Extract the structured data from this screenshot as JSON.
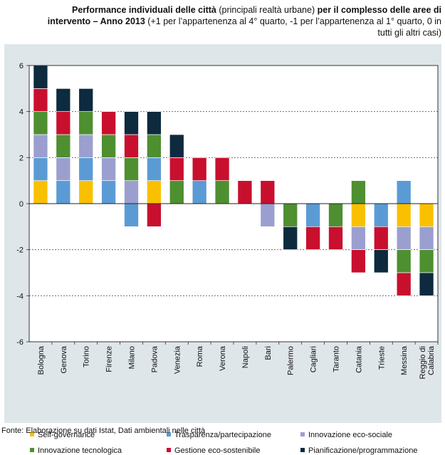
{
  "title": {
    "bold1": "Performance individuali delle città",
    "normal1": " (principali realtà urbane) ",
    "bold2": "per il complesso delle aree di intervento – Anno 2013",
    "normal2": " (+1 per l’appartenenza al 4° quarto, -1 per l’appartenenza al 1° quarto, 0 in tutti gli altri casi)"
  },
  "source": "Fonte: Elaborazione su dati Istat, Dati ambientali nelle città",
  "chart_data": {
    "type": "bar",
    "stacked": true,
    "ylim": [
      -6,
      6
    ],
    "yticks": [
      -6,
      -4,
      -2,
      0,
      2,
      4,
      6
    ],
    "grid": "horizontal-dashed",
    "categories": [
      "Bologna",
      "Genova",
      "Torino",
      "Firenze",
      "Milano",
      "Padova",
      "Venezia",
      "Roma",
      "Verona",
      "Napoli",
      "Bari",
      "Palermo",
      "Cagliari",
      "Taranto",
      "Catania",
      "Trieste",
      "Messina",
      "Reggio di Calabria"
    ],
    "series": [
      {
        "name": "Self-governance",
        "color": "#f9c000",
        "values": [
          1,
          0,
          1,
          0,
          0,
          1,
          0,
          0,
          0,
          0,
          0,
          0,
          0,
          0,
          -1,
          0,
          -1,
          -1
        ]
      },
      {
        "name": "Trasparenza/partecipazione",
        "color": "#5b9bd5",
        "values": [
          1,
          1,
          1,
          1,
          -1,
          1,
          0,
          1,
          0,
          0,
          0,
          0,
          -1,
          0,
          0,
          -1,
          1,
          0
        ]
      },
      {
        "name": "Innovazione eco-sociale",
        "color": "#9b9fcf",
        "values": [
          1,
          1,
          1,
          1,
          1,
          0,
          0,
          0,
          0,
          0,
          -1,
          0,
          0,
          0,
          -1,
          0,
          -1,
          -1
        ]
      },
      {
        "name": "Innovazione tecnologica",
        "color": "#4e8f30",
        "values": [
          1,
          1,
          1,
          1,
          1,
          1,
          1,
          0,
          1,
          0,
          0,
          -1,
          0,
          -1,
          1,
          0,
          -1,
          -1
        ]
      },
      {
        "name": "Gestione eco-sostenibile",
        "color": "#c8102e",
        "values": [
          1,
          1,
          0,
          1,
          1,
          -1,
          1,
          1,
          1,
          1,
          1,
          0,
          -1,
          -1,
          -1,
          -1,
          -1,
          0
        ]
      },
      {
        "name": "Pianificazione/programmazione",
        "color": "#0d2a3e",
        "values": [
          1,
          1,
          1,
          0,
          1,
          1,
          1,
          0,
          0,
          0,
          0,
          -1,
          0,
          0,
          0,
          -1,
          0,
          -1
        ]
      }
    ]
  }
}
